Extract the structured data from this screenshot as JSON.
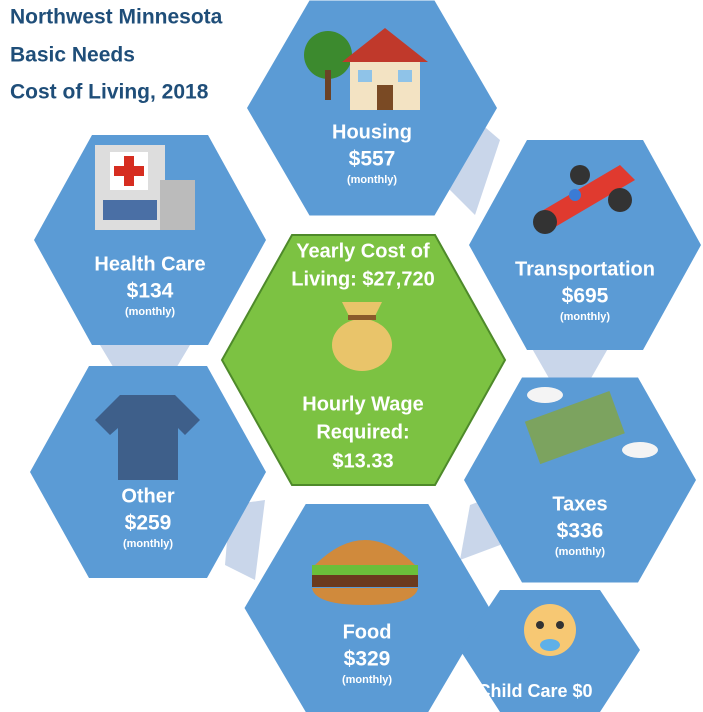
{
  "title": [
    "Northwest Minnesota",
    "Basic Needs",
    "Cost of Living, 2018"
  ],
  "center": {
    "yearly": [
      "Yearly Cost of",
      "Living: $27,720"
    ],
    "hourly": [
      "Hourly Wage",
      "Required:",
      "$13.33"
    ]
  },
  "categories": [
    {
      "label": "Housing",
      "amount": "$557",
      "note": "(monthly)"
    },
    {
      "label": "Transportation",
      "amount": "$695",
      "note": "(monthly)"
    },
    {
      "label": "Taxes",
      "amount": "$336",
      "note": "(monthly)"
    },
    {
      "label": "Food",
      "amount": "$329",
      "note": "(monthly)"
    },
    {
      "label": "Other",
      "amount": "$259",
      "note": "(monthly)"
    },
    {
      "label": "Health Care",
      "amount": "$134",
      "note": "(monthly)"
    }
  ],
  "child_care": "Child Care $0"
}
